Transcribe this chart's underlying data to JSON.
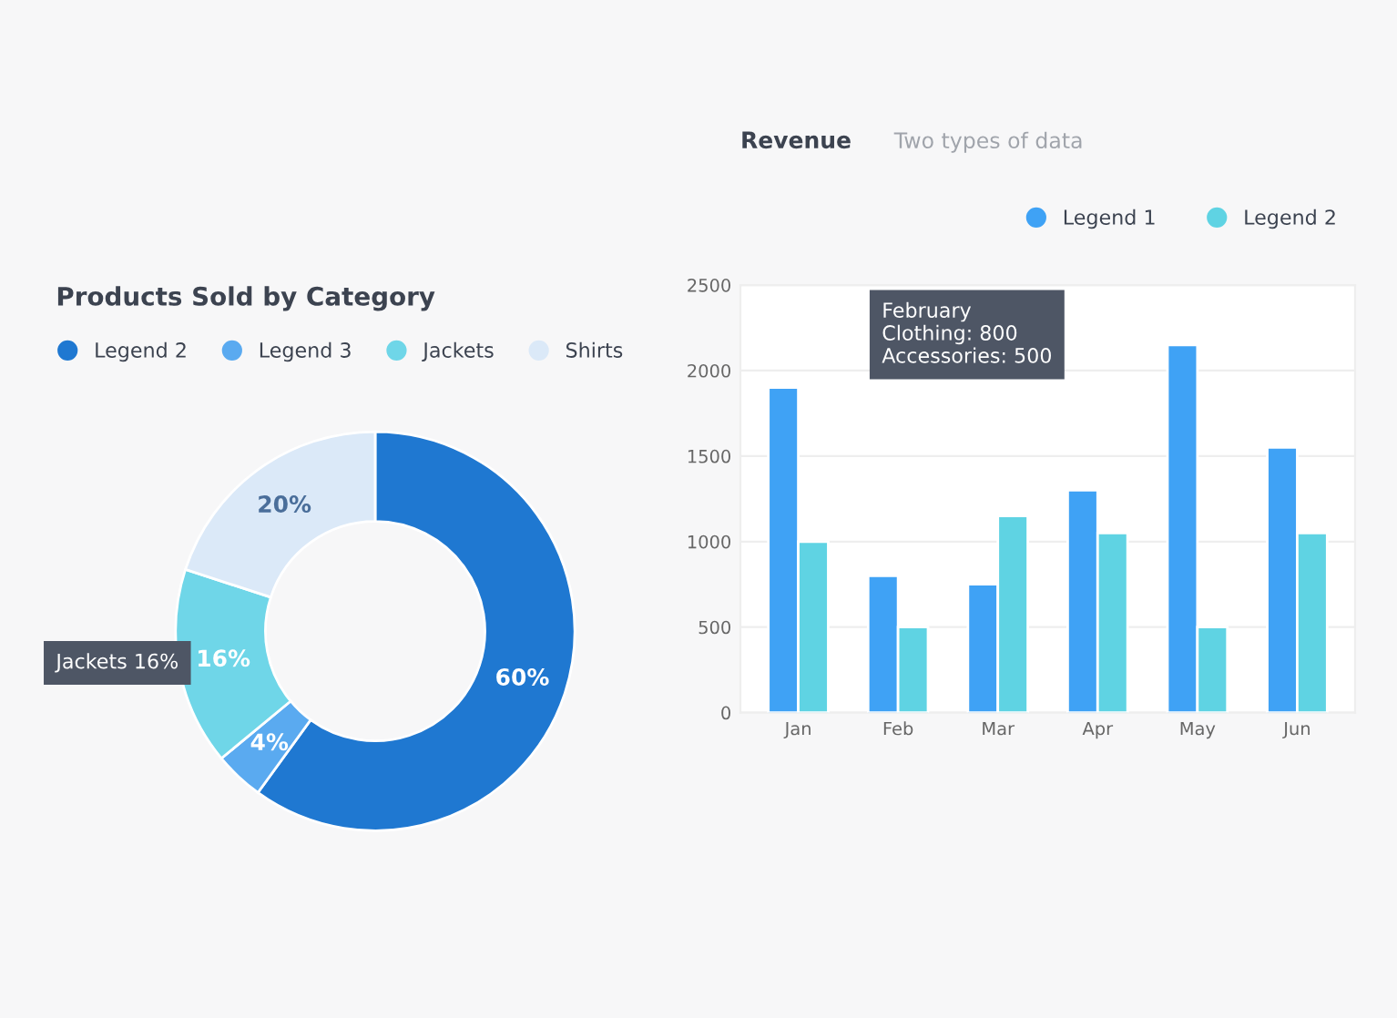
{
  "chart_data": [
    {
      "type": "donut",
      "title": "Products Sold by Category",
      "categories": [
        "Legend 2",
        "Legend 3",
        "Jackets",
        "Shirts"
      ],
      "values": [
        60,
        4,
        16,
        20
      ],
      "colors": [
        "#1f78d1",
        "#5aaaf0",
        "#6fd6e8",
        "#dbe9f8"
      ],
      "value_labels": [
        "60%",
        "4%",
        "16%",
        "20%"
      ],
      "legend": "top",
      "annotations": [
        "Jackets 16%"
      ]
    },
    {
      "type": "bar",
      "title": "Revenue",
      "subtitle": "Two types of data",
      "categories": [
        "Jan",
        "Feb",
        "Mar",
        "Apr",
        "May",
        "Jun"
      ],
      "series": [
        {
          "name": "Legend 1",
          "color": "#3fa2f5",
          "values": [
            1900,
            800,
            750,
            1300,
            2150,
            1550
          ]
        },
        {
          "name": "Legend 2",
          "color": "#5fd3e3",
          "values": [
            1000,
            500,
            1150,
            1050,
            500,
            1050
          ]
        }
      ],
      "ylim": [
        0,
        2500
      ],
      "yticks": [
        0,
        500,
        1000,
        1500,
        2000,
        2500
      ],
      "grid": "y",
      "legend": "top right",
      "annotations": [
        "February",
        "Clothing: 800",
        "Accessories: 500"
      ]
    }
  ]
}
